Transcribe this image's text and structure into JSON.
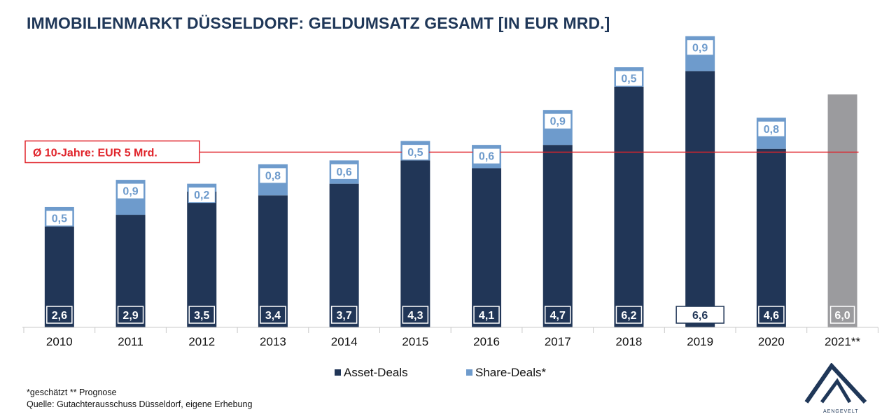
{
  "chart_data": {
    "type": "bar",
    "stacked": true,
    "title": "IMMOBILIENMARKT DÜSSELDORF: GELDUMSATZ GESAMT [IN EUR MRD.]",
    "categories": [
      "2010",
      "2011",
      "2012",
      "2013",
      "2014",
      "2015",
      "2016",
      "2017",
      "2018",
      "2019",
      "2020",
      "2021**"
    ],
    "series": [
      {
        "name": "Asset-Deals",
        "color": "#213657",
        "values": [
          2.6,
          2.9,
          3.5,
          3.4,
          3.7,
          4.3,
          4.1,
          4.7,
          6.2,
          6.6,
          4.6,
          null
        ],
        "labels": [
          "2,6",
          "2,9",
          "3,5",
          "3,4",
          "3,7",
          "4,3",
          "4,1",
          "4,7",
          "6,2",
          "6,6",
          "4,6",
          ""
        ]
      },
      {
        "name": "Share-Deals*",
        "color": "#6e9bcc",
        "values": [
          0.5,
          0.9,
          0.2,
          0.8,
          0.6,
          0.5,
          0.6,
          0.9,
          0.5,
          0.9,
          0.8,
          null
        ],
        "labels": [
          "0,5",
          "0,9",
          "0,2",
          "0,8",
          "0,6",
          "0,5",
          "0,6",
          "0,9",
          "0,5",
          "0,9",
          "0,8",
          ""
        ]
      }
    ],
    "forecast": {
      "category": "2021**",
      "value": 6.0,
      "label": "6,0",
      "color": "#9b9b9e"
    },
    "reference_line": {
      "value": 5.0,
      "label": "Ø 10-Jahre: EUR 5 Mrd.",
      "color": "#e0232a"
    },
    "highlight_label_category": "2019",
    "ylim": [
      0,
      8
    ],
    "grid": false,
    "legend_position": "bottom-center"
  },
  "footnotes": {
    "line1": "*geschätzt  ** Prognose",
    "line2": "Quelle: Gutachterausschuss Düsseldorf, eigene Erhebung"
  },
  "logo": {
    "text": "AENGEVELT",
    "color": "#1f3758"
  }
}
